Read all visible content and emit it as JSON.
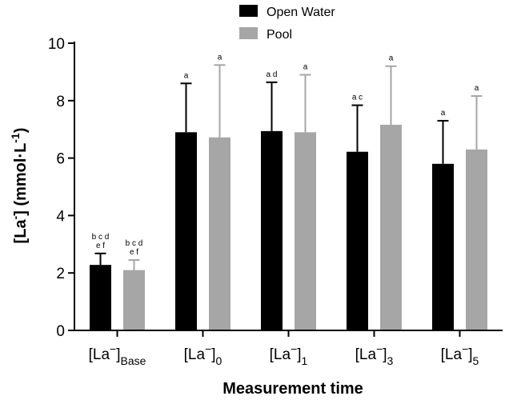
{
  "chart_data": {
    "type": "bar",
    "ylim": [
      0,
      10
    ],
    "y_ticks": [
      "0",
      "2",
      "4",
      "6",
      "8",
      "10"
    ],
    "xlabel": "Measurement time",
    "ylabel": {
      "main": "[La",
      "sup1": "-",
      "mid": "] (mmol·L",
      "sup2": "-1",
      "end": ")"
    },
    "categories": [
      {
        "main": "[La",
        "sup": "−",
        "close": "]",
        "sub": "Base"
      },
      {
        "main": "[La",
        "sup": "−",
        "close": "]",
        "sub": "0"
      },
      {
        "main": "[La",
        "sup": "−",
        "close": "]",
        "sub": "1"
      },
      {
        "main": "[La",
        "sup": "−",
        "close": "]",
        "sub": "3"
      },
      {
        "main": "[La",
        "sup": "−",
        "close": "]",
        "sub": "5"
      }
    ],
    "series": [
      {
        "name": "Open Water",
        "color": "#000000",
        "values": [
          2.28,
          6.9,
          6.94,
          6.22,
          5.8
        ],
        "errors": [
          0.4,
          1.7,
          1.7,
          1.62,
          1.5
        ],
        "sig": [
          [
            "b c d",
            "e f"
          ],
          [
            "a"
          ],
          [
            "a d"
          ],
          [
            "a c"
          ],
          [
            "a"
          ]
        ]
      },
      {
        "name": "Pool",
        "color": "#a6a6a6",
        "values": [
          2.1,
          6.72,
          6.9,
          7.16,
          6.3
        ],
        "errors": [
          0.35,
          2.52,
          2.0,
          2.04,
          1.86
        ],
        "sig": [
          [
            "b c d",
            "e f"
          ],
          [
            "a"
          ],
          [
            "a"
          ],
          [
            "a"
          ],
          [
            "a"
          ]
        ]
      }
    ],
    "legend_position": "top-center",
    "grid": false
  }
}
